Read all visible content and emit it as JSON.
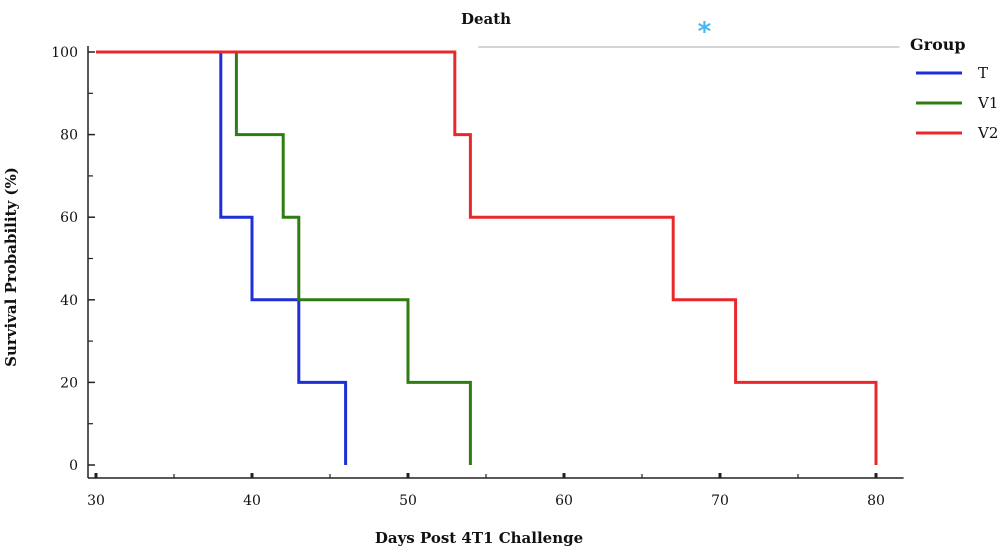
{
  "chart_data": {
    "type": "line",
    "title": "Death",
    "xlabel": "Days Post 4T1 Challenge",
    "ylabel": "Survival Probability (%)",
    "xlim": [
      30,
      81
    ],
    "ylim": [
      0,
      100
    ],
    "x_ticks": [
      30,
      40,
      50,
      60,
      70,
      80
    ],
    "y_ticks": [
      0,
      20,
      40,
      60,
      80,
      100
    ],
    "legend_title": "Group",
    "legend_position": "right",
    "series": [
      {
        "name": "T",
        "color": "#1f2fd8",
        "points": [
          [
            38,
            100
          ],
          [
            38,
            60
          ],
          [
            40,
            60
          ],
          [
            40,
            40
          ],
          [
            43,
            40
          ],
          [
            43,
            20
          ],
          [
            46,
            20
          ],
          [
            46,
            0
          ]
        ]
      },
      {
        "name": "V1",
        "color": "#2f7d12",
        "points": [
          [
            39,
            100
          ],
          [
            39,
            80
          ],
          [
            42,
            80
          ],
          [
            42,
            60
          ],
          [
            43,
            60
          ],
          [
            43,
            40
          ],
          [
            50,
            40
          ],
          [
            50,
            20
          ],
          [
            54,
            20
          ],
          [
            54,
            0
          ]
        ]
      },
      {
        "name": "V2",
        "color": "#e8282b",
        "points": [
          [
            30,
            100
          ],
          [
            53,
            100
          ],
          [
            53,
            80
          ],
          [
            54,
            80
          ],
          [
            54,
            60
          ],
          [
            67,
            60
          ],
          [
            67,
            40
          ],
          [
            71,
            40
          ],
          [
            71,
            20
          ],
          [
            80,
            20
          ],
          [
            80,
            0
          ]
        ]
      }
    ],
    "annotation": {
      "symbol": "*",
      "color": "#46b8f0",
      "x_from": 54.5,
      "x_to": 81,
      "y": 100,
      "symbol_x": 69
    }
  }
}
